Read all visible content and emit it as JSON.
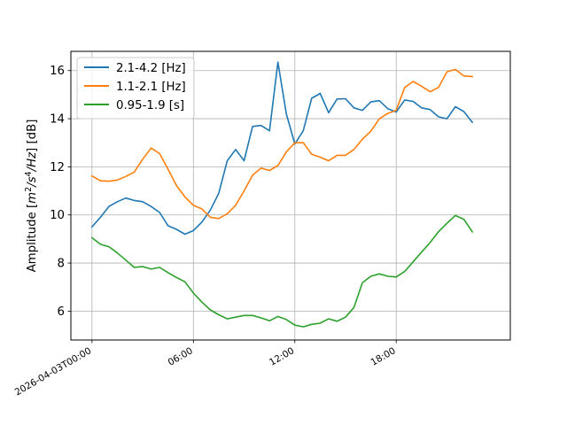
{
  "chart_data": {
    "type": "line",
    "title": "",
    "xlabel": "",
    "ylabel": "Amplitude [m²/s⁴/Hz] [dB]",
    "ylabel_parts": {
      "prefix": "Amplitude [",
      "m": "m",
      "sup2": "2",
      "s": "/s",
      "sup4": "4",
      "hz": "/Hz",
      "suffix": "] [dB]"
    },
    "x_unit": "hours since 2026-04-03T00:00",
    "xlim": [
      -1.25,
      24.75
    ],
    "ylim": [
      4.8,
      16.8
    ],
    "grid": true,
    "legend_position": "upper-left",
    "x_ticks": [
      {
        "v": 0,
        "label": "2026-04-03T00:00"
      },
      {
        "v": 6,
        "label": "06:00"
      },
      {
        "v": 12,
        "label": "12:00"
      },
      {
        "v": 18,
        "label": "18:00"
      }
    ],
    "y_ticks": [
      {
        "v": 6,
        "label": "6"
      },
      {
        "v": 8,
        "label": "8"
      },
      {
        "v": 10,
        "label": "10"
      },
      {
        "v": 12,
        "label": "12"
      },
      {
        "v": 14,
        "label": "14"
      },
      {
        "v": 16,
        "label": "16"
      }
    ],
    "x": [
      0,
      0.5,
      1,
      1.5,
      2,
      2.5,
      3,
      3.5,
      4,
      4.5,
      5,
      5.5,
      6,
      6.5,
      7,
      7.5,
      8,
      8.5,
      9,
      9.5,
      10,
      10.5,
      11,
      11.5,
      12,
      12.5,
      13,
      13.5,
      14,
      14.5,
      15,
      15.5,
      16,
      16.5,
      17,
      17.5,
      18,
      18.5,
      19,
      19.5,
      20,
      20.5,
      21,
      21.5,
      22,
      22.5
    ],
    "series": [
      {
        "name": "2.1-4.2 [Hz]",
        "color": "#1f77b4",
        "values": [
          9.5,
          9.9,
          10.35,
          10.55,
          10.7,
          10.6,
          10.55,
          10.35,
          10.1,
          9.55,
          9.4,
          9.2,
          9.35,
          9.7,
          10.2,
          10.9,
          12.25,
          12.72,
          12.25,
          13.68,
          13.72,
          13.5,
          16.35,
          14.2,
          12.95,
          13.5,
          14.85,
          15.05,
          14.25,
          14.82,
          14.83,
          14.45,
          14.35,
          14.7,
          14.75,
          14.42,
          14.28,
          14.78,
          14.72,
          14.45,
          14.38,
          14.08,
          14.0,
          14.5,
          14.3,
          13.85
        ]
      },
      {
        "name": "1.1-2.1 [Hz]",
        "color": "#ff7f0e",
        "values": [
          11.62,
          11.42,
          11.4,
          11.45,
          11.6,
          11.78,
          12.32,
          12.78,
          12.55,
          11.9,
          11.22,
          10.75,
          10.4,
          10.25,
          9.9,
          9.85,
          10.05,
          10.4,
          11.0,
          11.65,
          11.95,
          11.85,
          12.05,
          12.62,
          13.0,
          13.0,
          12.52,
          12.4,
          12.25,
          12.48,
          12.48,
          12.72,
          13.15,
          13.48,
          14.0,
          14.22,
          14.35,
          15.3,
          15.55,
          15.35,
          15.12,
          15.3,
          15.95,
          16.05,
          15.78,
          15.75
        ]
      },
      {
        "name": "0.95-1.9 [s]",
        "color": "#2ca02c",
        "values": [
          9.05,
          8.78,
          8.68,
          8.42,
          8.12,
          7.82,
          7.85,
          7.75,
          7.82,
          7.6,
          7.4,
          7.22,
          6.75,
          6.38,
          6.05,
          5.85,
          5.68,
          5.75,
          5.82,
          5.82,
          5.72,
          5.6,
          5.78,
          5.65,
          5.42,
          5.35,
          5.45,
          5.5,
          5.68,
          5.58,
          5.75,
          6.15,
          7.18,
          7.45,
          7.55,
          7.45,
          7.42,
          7.65,
          8.05,
          8.45,
          8.85,
          9.3,
          9.65,
          9.98,
          9.82,
          9.3
        ]
      }
    ]
  }
}
